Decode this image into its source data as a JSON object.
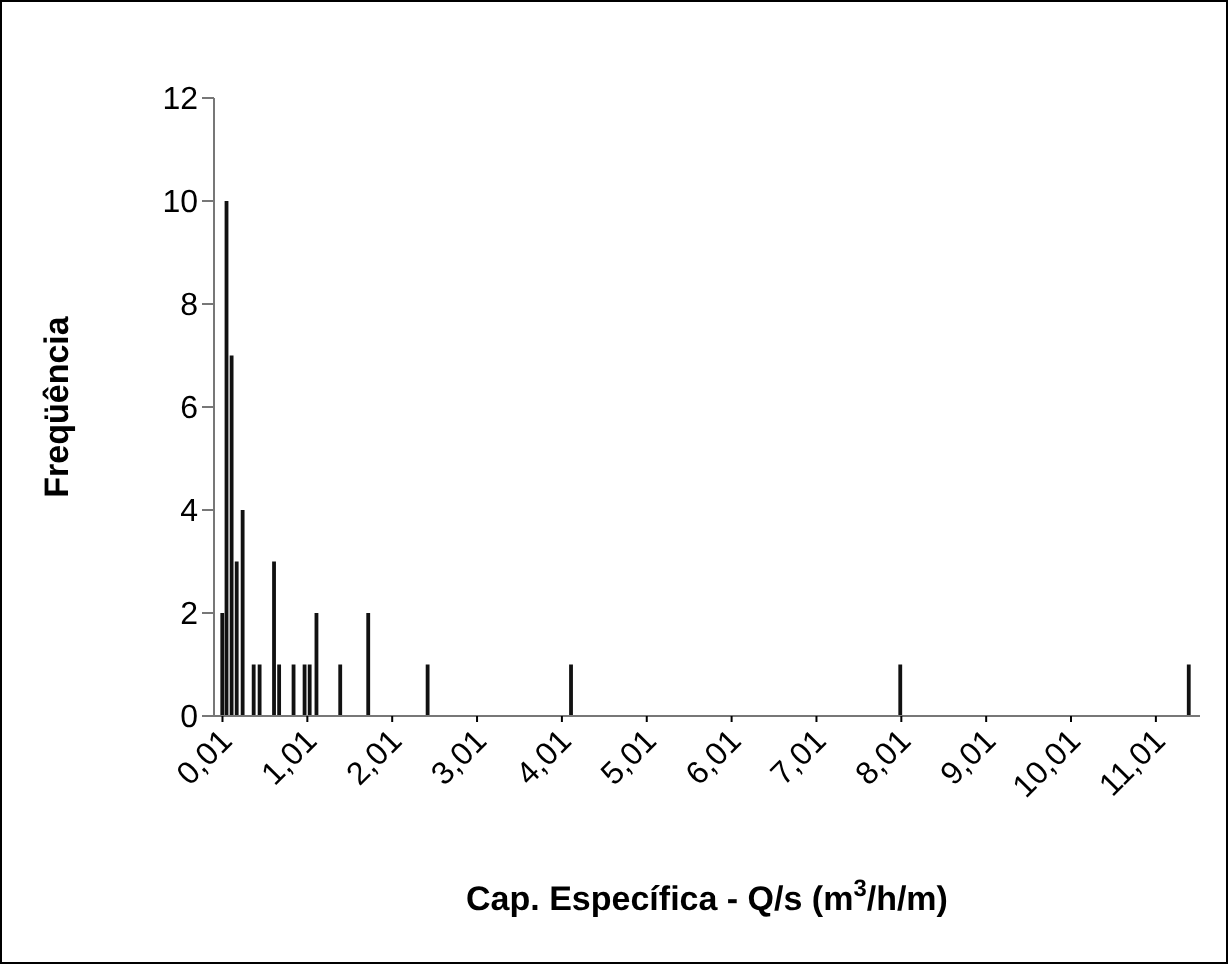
{
  "chart_data": {
    "type": "bar",
    "xlabel": "Cap. Específica - Q/s (m$^{3}$/h/m)",
    "ylabel": "Freqüência",
    "x": [
      0.01,
      0.06,
      0.12,
      0.18,
      0.25,
      0.38,
      0.45,
      0.62,
      0.68,
      0.85,
      0.98,
      1.04,
      1.12,
      1.4,
      1.73,
      2.43,
      4.12,
      8.0,
      11.4
    ],
    "values": [
      2,
      10,
      7,
      3,
      4,
      1,
      1,
      3,
      1,
      1,
      1,
      1,
      2,
      1,
      2,
      1,
      1,
      1,
      1
    ],
    "color": "#111111",
    "xlim": [
      -0.09,
      11.53
    ],
    "xticks": [
      {
        "value": 0.01,
        "label": "0,01"
      },
      {
        "value": 1.01,
        "label": "1,01"
      },
      {
        "value": 2.01,
        "label": "2,01"
      },
      {
        "value": 3.01,
        "label": "3,01"
      },
      {
        "value": 4.01,
        "label": "4,01"
      },
      {
        "value": 5.01,
        "label": "5,01"
      },
      {
        "value": 6.01,
        "label": "6,01"
      },
      {
        "value": 7.01,
        "label": "7,01"
      },
      {
        "value": 8.01,
        "label": "8,01"
      },
      {
        "value": 9.01,
        "label": "9,01"
      },
      {
        "value": 10.01,
        "label": "10,01"
      },
      {
        "value": 11.01,
        "label": "11,01"
      }
    ],
    "ylim": [
      0,
      12
    ],
    "yticks": [
      0,
      2,
      4,
      6,
      8,
      10,
      12
    ],
    "grid": false,
    "legend": false
  }
}
